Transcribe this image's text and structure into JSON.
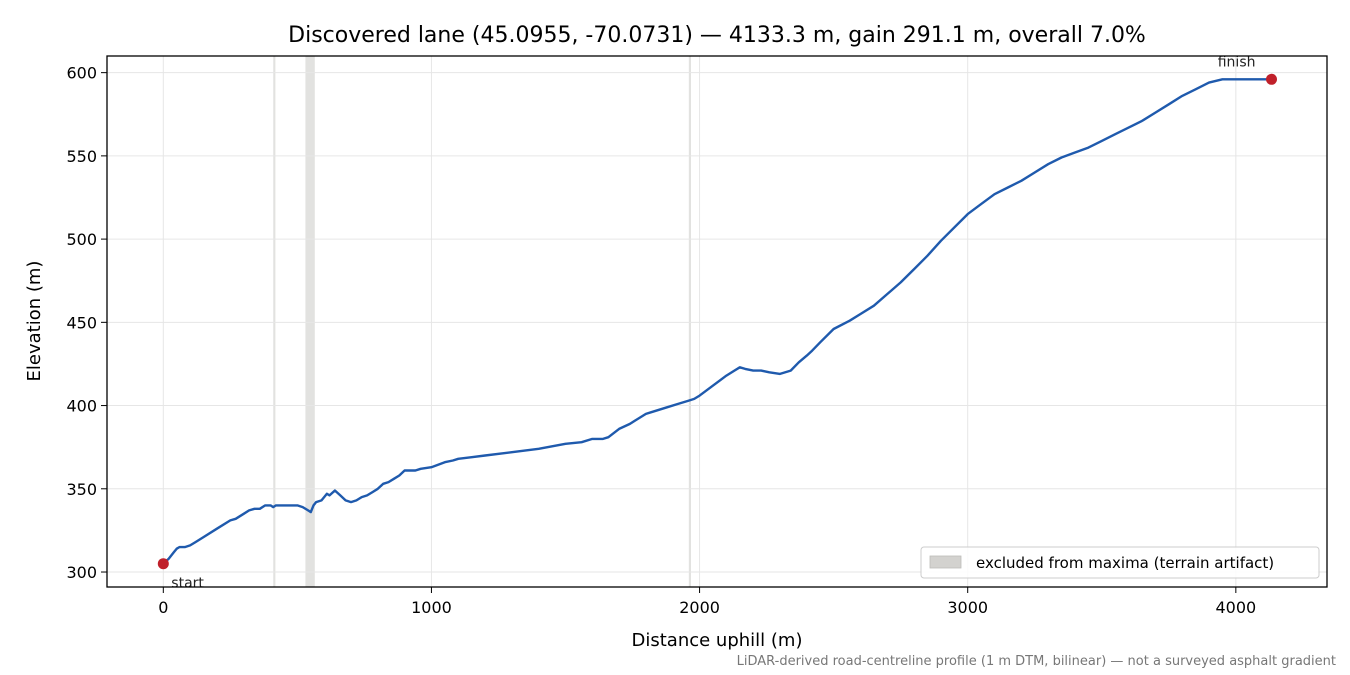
{
  "chart_data": {
    "type": "line",
    "title": "Discovered lane (45.0955, -70.0731) — 4133.3 m, gain 291.1 m, overall 7.0%",
    "xlabel": "Distance uphill (m)",
    "ylabel": "Elevation (m)",
    "xlim": [
      -210,
      4340
    ],
    "ylim": [
      291,
      610
    ],
    "x_ticks": [
      0,
      1000,
      2000,
      3000,
      4000
    ],
    "y_ticks": [
      300,
      350,
      400,
      450,
      500,
      550,
      600
    ],
    "x_tick_labels": [
      "0",
      "1000",
      "2000",
      "3000",
      "4000"
    ],
    "y_tick_labels": [
      "300",
      "350",
      "400",
      "450",
      "500",
      "550",
      "600"
    ],
    "grid": true,
    "line_color": "#1f5aad",
    "endpoint_color": "#c0202a",
    "series": [
      {
        "x": [
          0,
          20,
          40,
          50,
          60,
          80,
          100,
          120,
          150,
          200,
          250,
          270,
          300,
          320,
          340,
          360,
          380,
          400,
          410,
          420,
          430,
          440,
          450,
          470,
          500,
          520,
          540,
          550,
          560,
          570,
          590,
          610,
          620,
          640,
          660,
          680,
          700,
          720,
          740,
          760,
          780,
          800,
          820,
          840,
          860,
          880,
          900,
          910,
          920,
          940,
          960,
          1000,
          1050,
          1080,
          1100,
          1150,
          1200,
          1300,
          1400,
          1500,
          1560,
          1600,
          1640,
          1660,
          1700,
          1740,
          1760,
          1800,
          1820,
          1880,
          1920,
          1960,
          1980,
          2000,
          2050,
          2100,
          2130,
          2150,
          2170,
          2200,
          2230,
          2260,
          2300,
          2340,
          2370,
          2400,
          2420,
          2450,
          2500,
          2560,
          2600,
          2650,
          2700,
          2750,
          2800,
          2850,
          2900,
          3000,
          3050,
          3100,
          3150,
          3200,
          3250,
          3300,
          3350,
          3400,
          3450,
          3500,
          3550,
          3600,
          3650,
          3700,
          3750,
          3800,
          3850,
          3900,
          3950,
          4000,
          4050,
          4100,
          4133
        ],
        "y": [
          305,
          308,
          312,
          314,
          315,
          315,
          316,
          318,
          321,
          326,
          331,
          332,
          335,
          337,
          338,
          338,
          340,
          340,
          339,
          340,
          340,
          340,
          340,
          340,
          340,
          339,
          337,
          336,
          340,
          342,
          343,
          347,
          346,
          349,
          346,
          343,
          342,
          343,
          345,
          346,
          348,
          350,
          353,
          354,
          356,
          358,
          361,
          361,
          361,
          361,
          362,
          363,
          366,
          367,
          368,
          369,
          370,
          372,
          374,
          377,
          378,
          380,
          380,
          381,
          386,
          389,
          391,
          395,
          396,
          399,
          401,
          403,
          404,
          406,
          412,
          418,
          421,
          423,
          422,
          421,
          421,
          420,
          419,
          421,
          426,
          430,
          433,
          438,
          446,
          451,
          455,
          460,
          467,
          474,
          482,
          490,
          499,
          515,
          521,
          527,
          531,
          535,
          540,
          545,
          549,
          552,
          555,
          559,
          563,
          567,
          571,
          576,
          581,
          586,
          590,
          594,
          596,
          596,
          596,
          596,
          596
        ]
      }
    ],
    "excluded_bands": [
      [
        410,
        418
      ],
      [
        530,
        565
      ],
      [
        1960,
        1968
      ]
    ],
    "points": [
      {
        "label": "start",
        "x": 0,
        "y": 305
      },
      {
        "label": "finish",
        "x": 4133,
        "y": 596
      }
    ],
    "legend": {
      "entries": [
        "excluded from maxima (terrain artifact)"
      ],
      "position": "lower-right"
    },
    "band_color": "#d3d2cf",
    "footnote": "LiDAR-derived road-centreline profile (1 m DTM, bilinear) — not a surveyed asphalt gradient"
  }
}
